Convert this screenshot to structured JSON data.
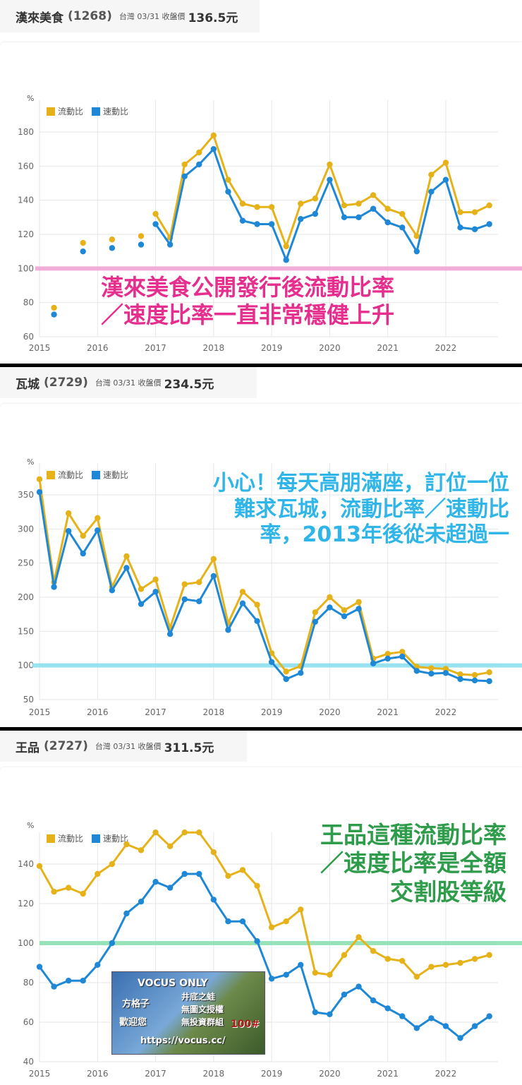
{
  "panels": [
    {
      "header": {
        "name": "漢來美食",
        "code": "(1268)",
        "meta": "台灣 03/31 收盤價",
        "price": "136.5元"
      },
      "annotation": {
        "lines": [
          "漢來美食公開發行後流動比率",
          "／速度比率一直非常穩健上升"
        ],
        "color": "#e62e8f"
      },
      "reference_line": {
        "value": 100,
        "color": "#f0a6d8"
      },
      "chart_data": {
        "type": "line",
        "ylabel": "%",
        "ylim": [
          60,
          180
        ],
        "yticks": [
          60,
          80,
          100,
          120,
          140,
          160,
          180
        ],
        "xlim": [
          2015,
          2022.9
        ],
        "xticks": [
          2015,
          2016,
          2017,
          2018,
          2019,
          2020,
          2021,
          2022
        ],
        "grid": true,
        "legend": "top-left",
        "series": [
          {
            "name": "流動比",
            "color": "#e6b219",
            "x": [
              2015.25,
              2015.75,
              2016.25,
              2016.75,
              2017.0,
              2017.25,
              2017.5,
              2017.75,
              2018.0,
              2018.25,
              2018.5,
              2018.75,
              2019.0,
              2019.25,
              2019.5,
              2019.75,
              2020.0,
              2020.25,
              2020.5,
              2020.75,
              2021.0,
              2021.25,
              2021.5,
              2021.75,
              2022.0,
              2022.25,
              2022.5,
              2022.75
            ],
            "values": [
              77,
              115,
              117,
              119,
              132,
              118,
              161,
              168,
              178,
              152,
              138,
              136,
              136,
              113,
              138,
              141,
              161,
              137,
              138,
              143,
              135,
              132,
              119,
              155,
              162,
              133,
              133,
              137
            ],
            "segments_start": [
              2,
              3,
              4
            ]
          },
          {
            "name": "速動比",
            "color": "#1e88d6",
            "x": [
              2015.25,
              2015.75,
              2016.25,
              2016.75,
              2017.0,
              2017.25,
              2017.5,
              2017.75,
              2018.0,
              2018.25,
              2018.5,
              2018.75,
              2019.0,
              2019.25,
              2019.5,
              2019.75,
              2020.0,
              2020.25,
              2020.5,
              2020.75,
              2021.0,
              2021.25,
              2021.5,
              2021.75,
              2022.0,
              2022.25,
              2022.5,
              2022.75
            ],
            "values": [
              73,
              110,
              112,
              114,
              126,
              114,
              154,
              161,
              170,
              145,
              128,
              126,
              126,
              105,
              129,
              132,
              152,
              130,
              130,
              135,
              127,
              124,
              110,
              145,
              152,
              124,
              123,
              126
            ],
            "segments_start": [
              2,
              3,
              4
            ]
          }
        ]
      }
    },
    {
      "header": {
        "name": "瓦城",
        "code": "(2729)",
        "meta": "台灣 03/31 收盤價",
        "price": "234.5元"
      },
      "annotation": {
        "lines": [
          "小心！每天高朋滿座，訂位一位",
          "難求瓦城，流動比率／速動比",
          "率，2013年後從未超過一"
        ],
        "color": "#2fb5e8"
      },
      "reference_line": {
        "value": 100,
        "color": "#8fe0f0"
      },
      "chart_data": {
        "type": "line",
        "ylabel": "%",
        "ylim": [
          50,
          350
        ],
        "yticks": [
          50,
          100,
          150,
          200,
          250,
          300,
          350
        ],
        "xlim": [
          2015,
          2022.9
        ],
        "xticks": [
          2015,
          2016,
          2017,
          2018,
          2019,
          2020,
          2021,
          2022
        ],
        "grid": true,
        "legend": "top-left",
        "series": [
          {
            "name": "流動比",
            "color": "#e6b219",
            "x": [
              2015.0,
              2015.25,
              2015.5,
              2015.75,
              2016.0,
              2016.25,
              2016.5,
              2016.75,
              2017.0,
              2017.25,
              2017.5,
              2017.75,
              2018.0,
              2018.25,
              2018.5,
              2018.75,
              2019.0,
              2019.25,
              2019.5,
              2019.75,
              2020.0,
              2020.25,
              2020.5,
              2020.75,
              2021.0,
              2021.25,
              2021.5,
              2021.75,
              2022.0,
              2022.25,
              2022.5,
              2022.75
            ],
            "values": [
              373,
              222,
              323,
              290,
              316,
              215,
              260,
              212,
              226,
              155,
              219,
              222,
              256,
              162,
              208,
              189,
              118,
              91,
              99,
              178,
              200,
              181,
              193,
              110,
              117,
              120,
              98,
              96,
              95,
              87,
              86,
              90
            ]
          },
          {
            "name": "速動比",
            "color": "#1e88d6",
            "x": [
              2015.0,
              2015.25,
              2015.5,
              2015.75,
              2016.0,
              2016.25,
              2016.5,
              2016.75,
              2017.0,
              2017.25,
              2017.5,
              2017.75,
              2018.0,
              2018.25,
              2018.5,
              2018.75,
              2019.0,
              2019.25,
              2019.5,
              2019.75,
              2020.0,
              2020.25,
              2020.5,
              2020.75,
              2021.0,
              2021.25,
              2021.5,
              2021.75,
              2022.0,
              2022.25,
              2022.5,
              2022.75
            ],
            "values": [
              354,
              215,
              297,
              264,
              298,
              210,
              243,
              190,
              208,
              146,
              197,
              194,
              231,
              152,
              191,
              165,
              105,
              80,
              89,
              164,
              185,
              172,
              183,
              103,
              110,
              113,
              92,
              88,
              89,
              80,
              78,
              77
            ]
          }
        ]
      }
    },
    {
      "header": {
        "name": "王品",
        "code": "(2727)",
        "meta": "台灣 03/31 收盤價",
        "price": "311.5元"
      },
      "annotation": {
        "lines": [
          "王品這種流動比率",
          "／速度比率是全額",
          "交割股等級"
        ],
        "color": "#2e9c4a"
      },
      "reference_line": {
        "value": 100,
        "color": "#8ee0b4"
      },
      "chart_data": {
        "type": "line",
        "ylabel": "%",
        "ylim": [
          40,
          140
        ],
        "yticks": [
          40,
          60,
          80,
          100,
          120,
          140
        ],
        "xlim": [
          2015,
          2022.9
        ],
        "xticks": [
          2015,
          2016,
          2017,
          2018,
          2019,
          2020,
          2021,
          2022
        ],
        "grid": true,
        "legend": "top-left",
        "series": [
          {
            "name": "流動比",
            "color": "#e6b219",
            "x": [
              2015.0,
              2015.25,
              2015.5,
              2015.75,
              2016.0,
              2016.25,
              2016.5,
              2016.75,
              2017.0,
              2017.25,
              2017.5,
              2017.75,
              2018.0,
              2018.25,
              2018.5,
              2018.75,
              2019.0,
              2019.25,
              2019.5,
              2019.75,
              2020.0,
              2020.25,
              2020.5,
              2020.75,
              2021.0,
              2021.25,
              2021.5,
              2021.75,
              2022.0,
              2022.25,
              2022.5,
              2022.75
            ],
            "values": [
              139,
              126,
              128,
              125,
              135,
              140,
              150,
              147,
              156,
              149,
              156,
              156,
              146,
              134,
              137,
              129,
              108,
              111,
              117,
              85,
              84,
              94,
              103,
              96,
              92,
              91,
              83,
              88,
              89,
              90,
              92,
              94
            ]
          },
          {
            "name": "速動比",
            "color": "#1e88d6",
            "x": [
              2015.0,
              2015.25,
              2015.5,
              2015.75,
              2016.0,
              2016.25,
              2016.5,
              2016.75,
              2017.0,
              2017.25,
              2017.5,
              2017.75,
              2018.0,
              2018.25,
              2018.5,
              2018.75,
              2019.0,
              2019.25,
              2019.5,
              2019.75,
              2020.0,
              2020.25,
              2020.5,
              2020.75,
              2021.0,
              2021.25,
              2021.5,
              2021.75,
              2022.0,
              2022.25,
              2022.5,
              2022.75
            ],
            "values": [
              88,
              78,
              81,
              81,
              89,
              100,
              115,
              121,
              131,
              128,
              135,
              135,
              122,
              111,
              111,
              101,
              82,
              84,
              89,
              65,
              64,
              74,
              78,
              71,
              67,
              63,
              57,
              62,
              58,
              52,
              58,
              63
            ]
          }
        ]
      }
    }
  ],
  "watermark": {
    "lines": [
      "VOCUS ONLY",
      "方格子",
      "歡迎您",
      "井底之蛙",
      "無圖文授權",
      "無投資群組",
      "100#",
      "https://vocus.cc/"
    ]
  }
}
